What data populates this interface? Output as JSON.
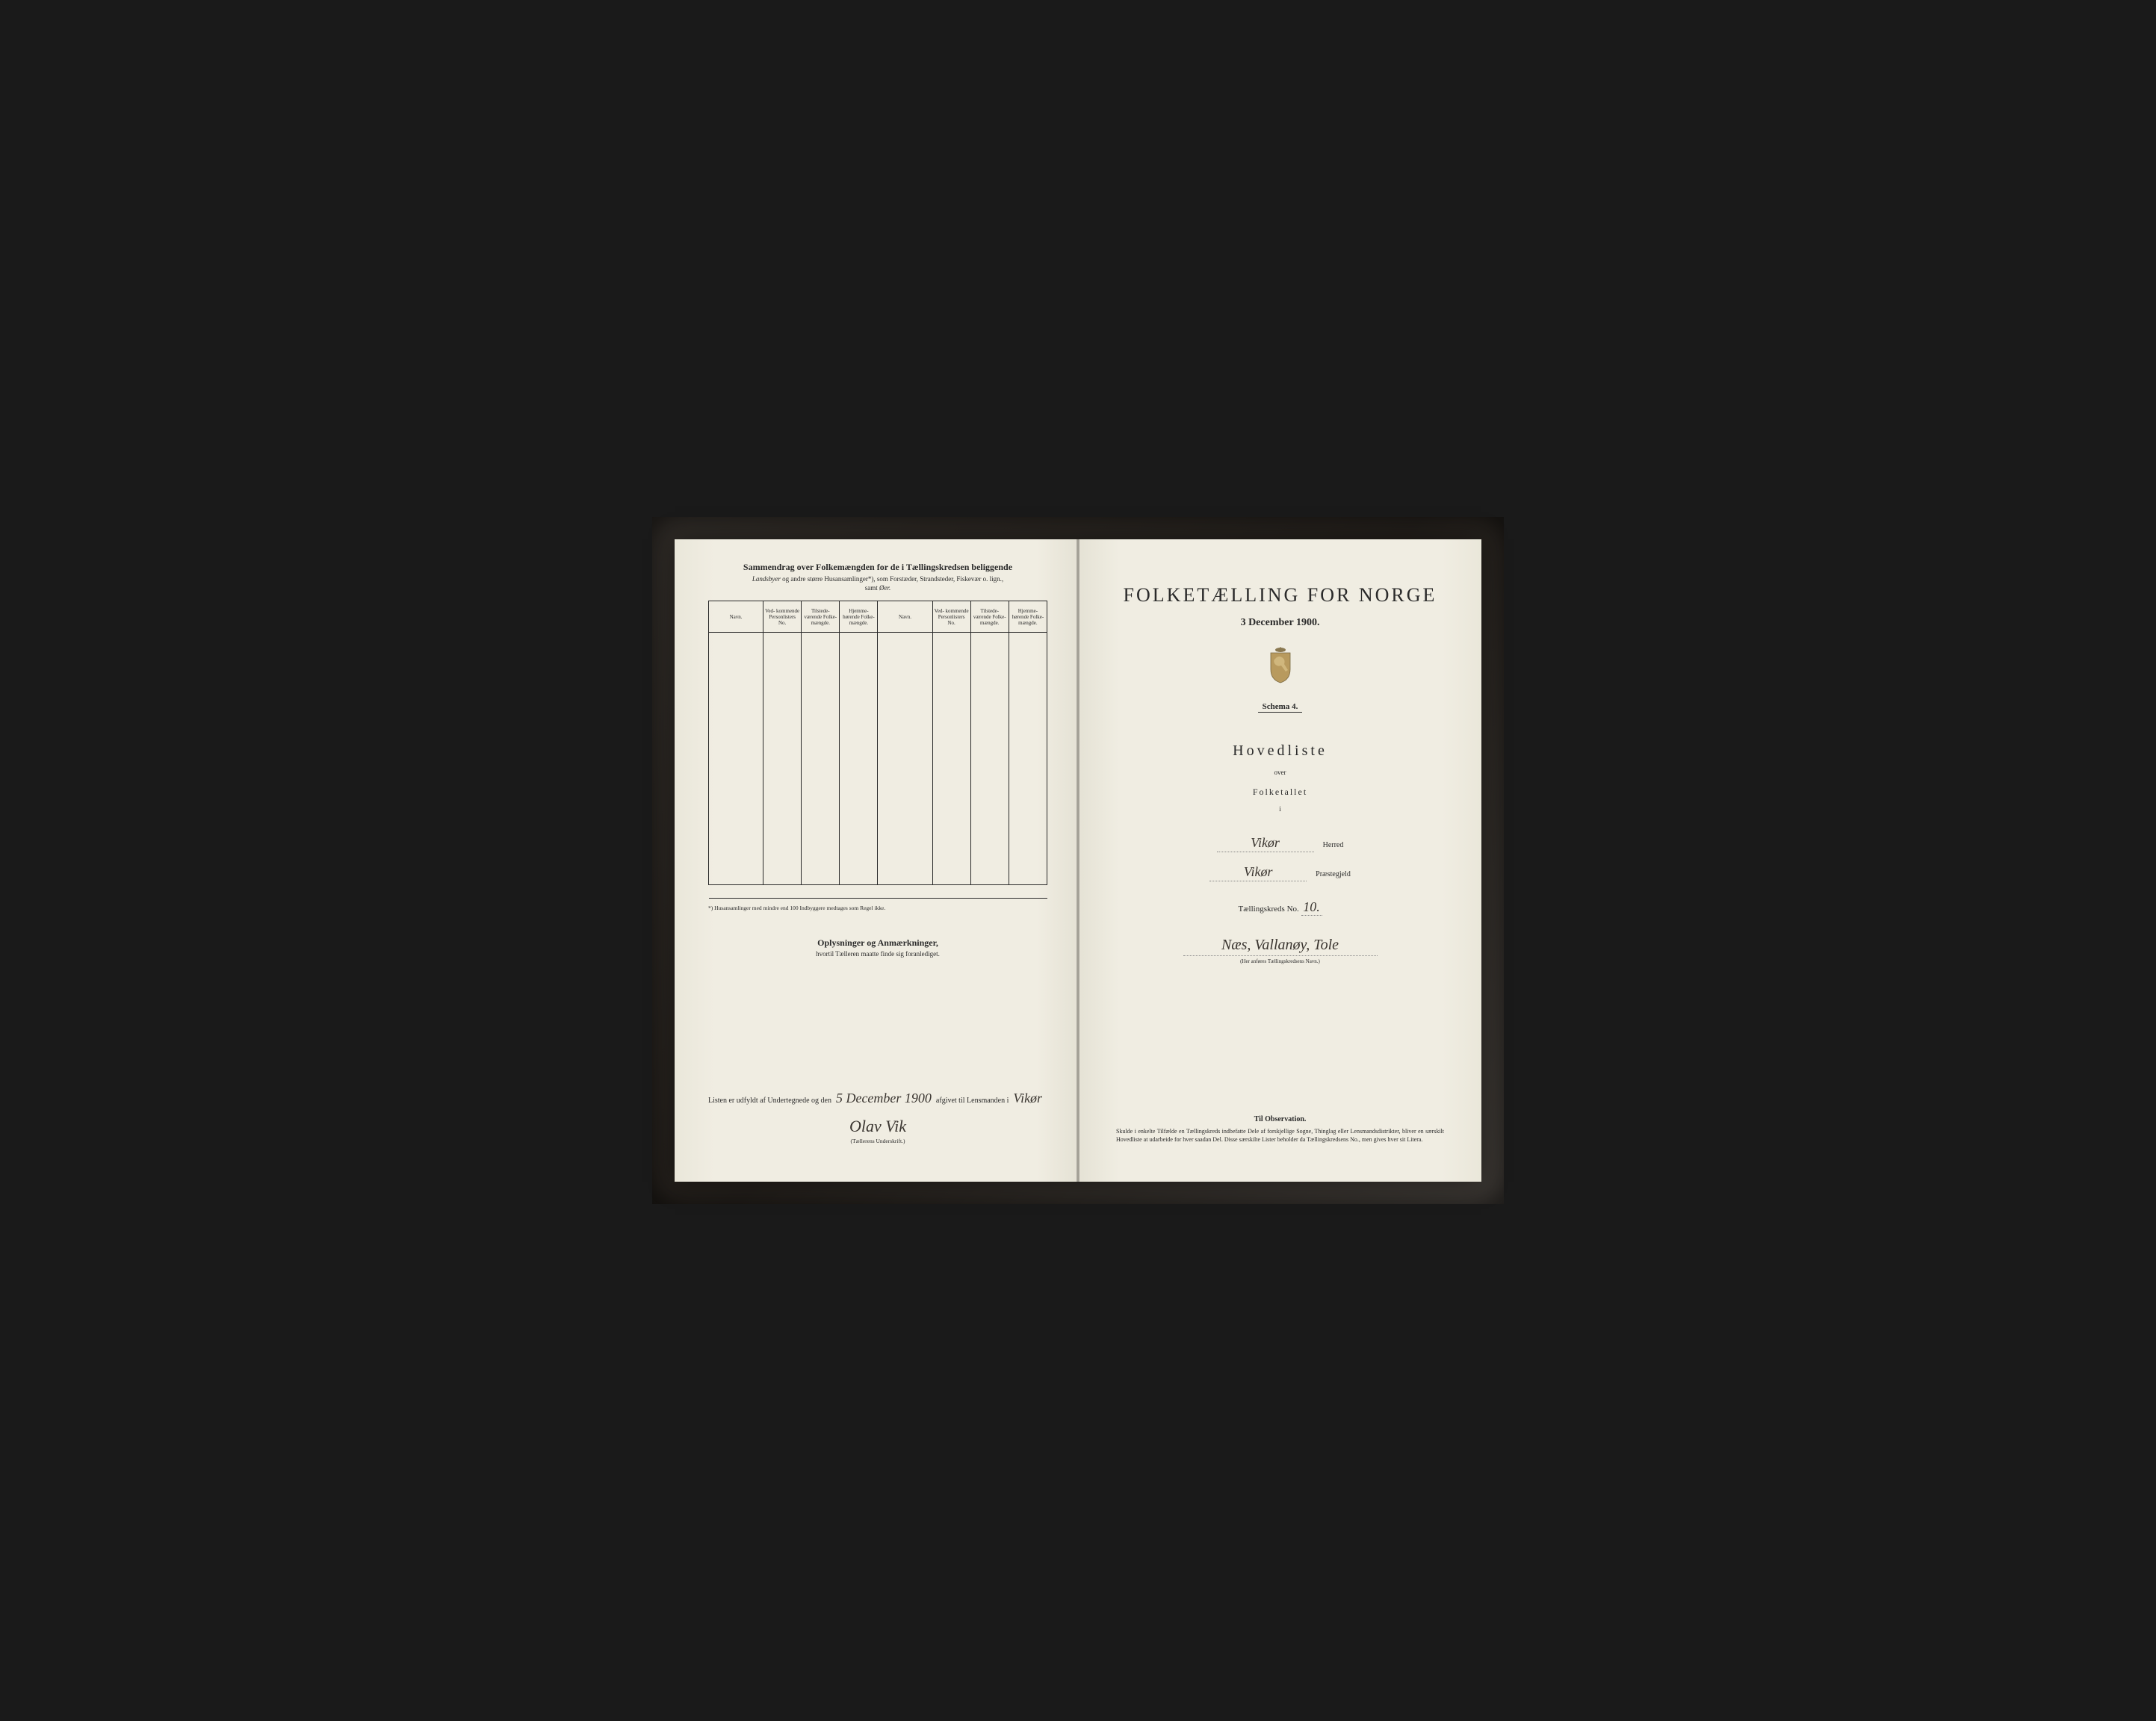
{
  "left": {
    "title": "Sammendrag over Folkemængden for de i Tællingskredsen beliggende",
    "subtitle1_italic": "Landsbyer",
    "subtitle1_rest": " og andre større Husansamlinger*), som Forstæder, Strandsteder, Fiskevær o. lign.,",
    "subtitle2_prefix": "samt ",
    "subtitle2_italic": "Øer.",
    "table_headers": {
      "navn": "Navn.",
      "vedk": "Ved-\nkommende\nPersonlisters\nNo.",
      "tilstede": "Tilstede-\nværende\nFolke-\nmængde.",
      "hjemme": "Hjemme-\nhørende\nFolke-\nmængde."
    },
    "table_row_count": 13,
    "footnote": "*) Husansamlinger med mindre end 100 Indbyggere medtages som Regel ikke.",
    "oplysninger_title": "Oplysninger og Anmærkninger,",
    "oplysninger_sub": "hvortil Tælleren maatte finde sig foranlediget.",
    "signature": {
      "prefix": "Listen er udfyldt af Undertegnede og den",
      "date_hand": "5 December 1900",
      "mid": "afgivet til Lensmanden i",
      "place_hand": "Vikør",
      "name_hand": "Olav Vik",
      "caption": "(Tællerens Underskrift.)"
    }
  },
  "right": {
    "main_title": "FOLKETÆLLING FOR NORGE",
    "date": "3 December 1900.",
    "schema": "Schema 4.",
    "hovedliste": "Hovedliste",
    "over": "over",
    "folketallet": "Folketallet",
    "i": "i",
    "herred_value": "Vikør",
    "herred_label": "Herred",
    "praestegjeld_value": "Vikør",
    "praestegjeld_label": "Præstegjeld",
    "tk_label": "Tællingskreds No.",
    "tk_no": "10.",
    "kreds_name": "Næs, Vallanøy, Tole",
    "kreds_caption": "(Her anføres Tællingskredsens Navn.)",
    "obs_title": "Til Observation.",
    "obs_text": "Skulde i enkelte Tilfælde en Tællingskreds indbefatte Dele af forskjellige Sogne, Thinglag eller Lensmandsdistrikter, bliver en særskilt Hovedliste at udarbeide for hver saadan Del. Disse særskilte Lister beholder da Tællingskredsens No., men gives hver sit Litera."
  },
  "colors": {
    "paper": "#f0ede2",
    "ink": "#2a2a2a",
    "frame": "#3a3530",
    "crest_shield": "#b89a5e",
    "crest_crown": "#8a7850"
  }
}
